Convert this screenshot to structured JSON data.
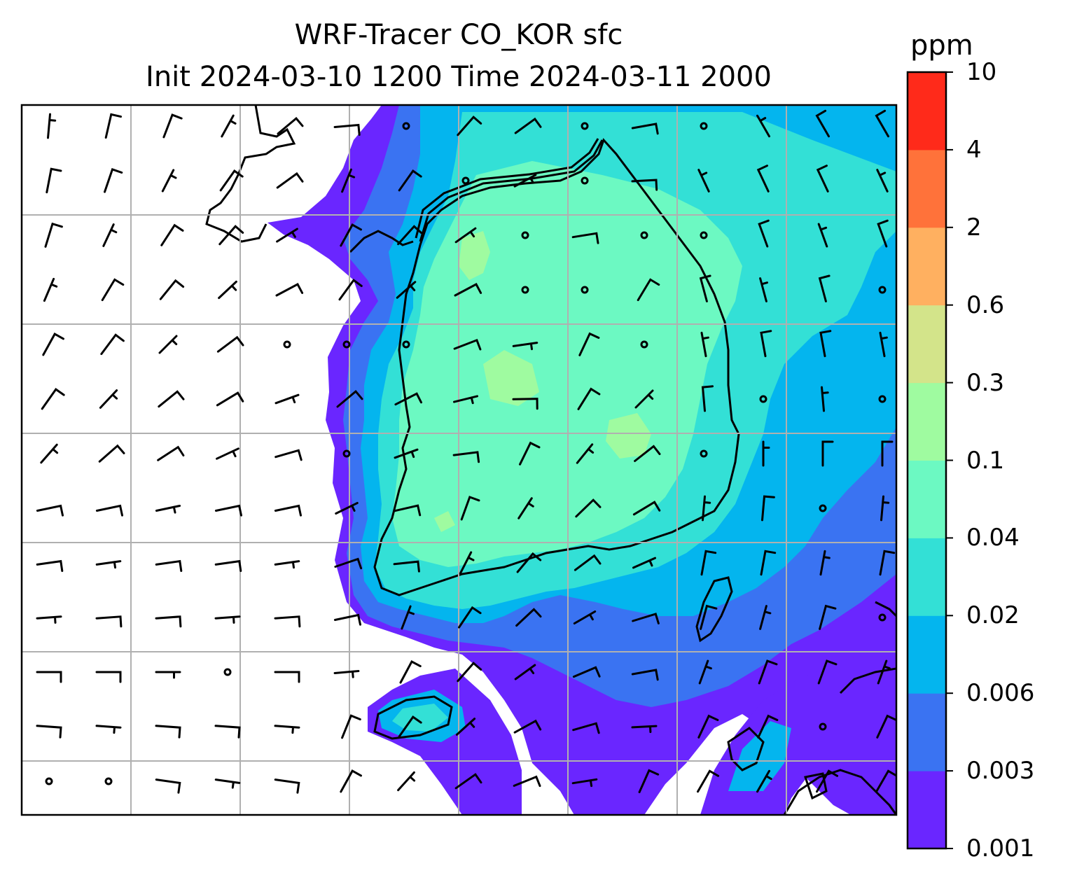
{
  "title": {
    "line1": "WRF-Tracer CO_KOR sfc",
    "line2": "Init 2024-03-10 1200 Time 2024-03-11 2000"
  },
  "colorbar": {
    "unit": "ppm",
    "levels": [
      "0.001",
      "0.003",
      "0.006",
      "0.02",
      "0.04",
      "0.1",
      "0.3",
      "0.6",
      "2",
      "4",
      "10"
    ],
    "colors": [
      "#6a26ff",
      "#3a73f2",
      "#04b5ee",
      "#33e0d6",
      "#6cf9c2",
      "#9ffba0",
      "#d3e48a",
      "#ffb060",
      "#ff723a",
      "#ff2a1a"
    ]
  },
  "map": {
    "field_colors": {
      "band1": "#6a26ff",
      "band2": "#3a73f2",
      "band3": "#04b5ee",
      "band4": "#33e0d6",
      "band5": "#6cf9c2",
      "band6": "#9ffba0"
    },
    "gridline_color": "#b0b0b0",
    "coastline_color": "#000000",
    "wind_barbs": "shown"
  }
}
